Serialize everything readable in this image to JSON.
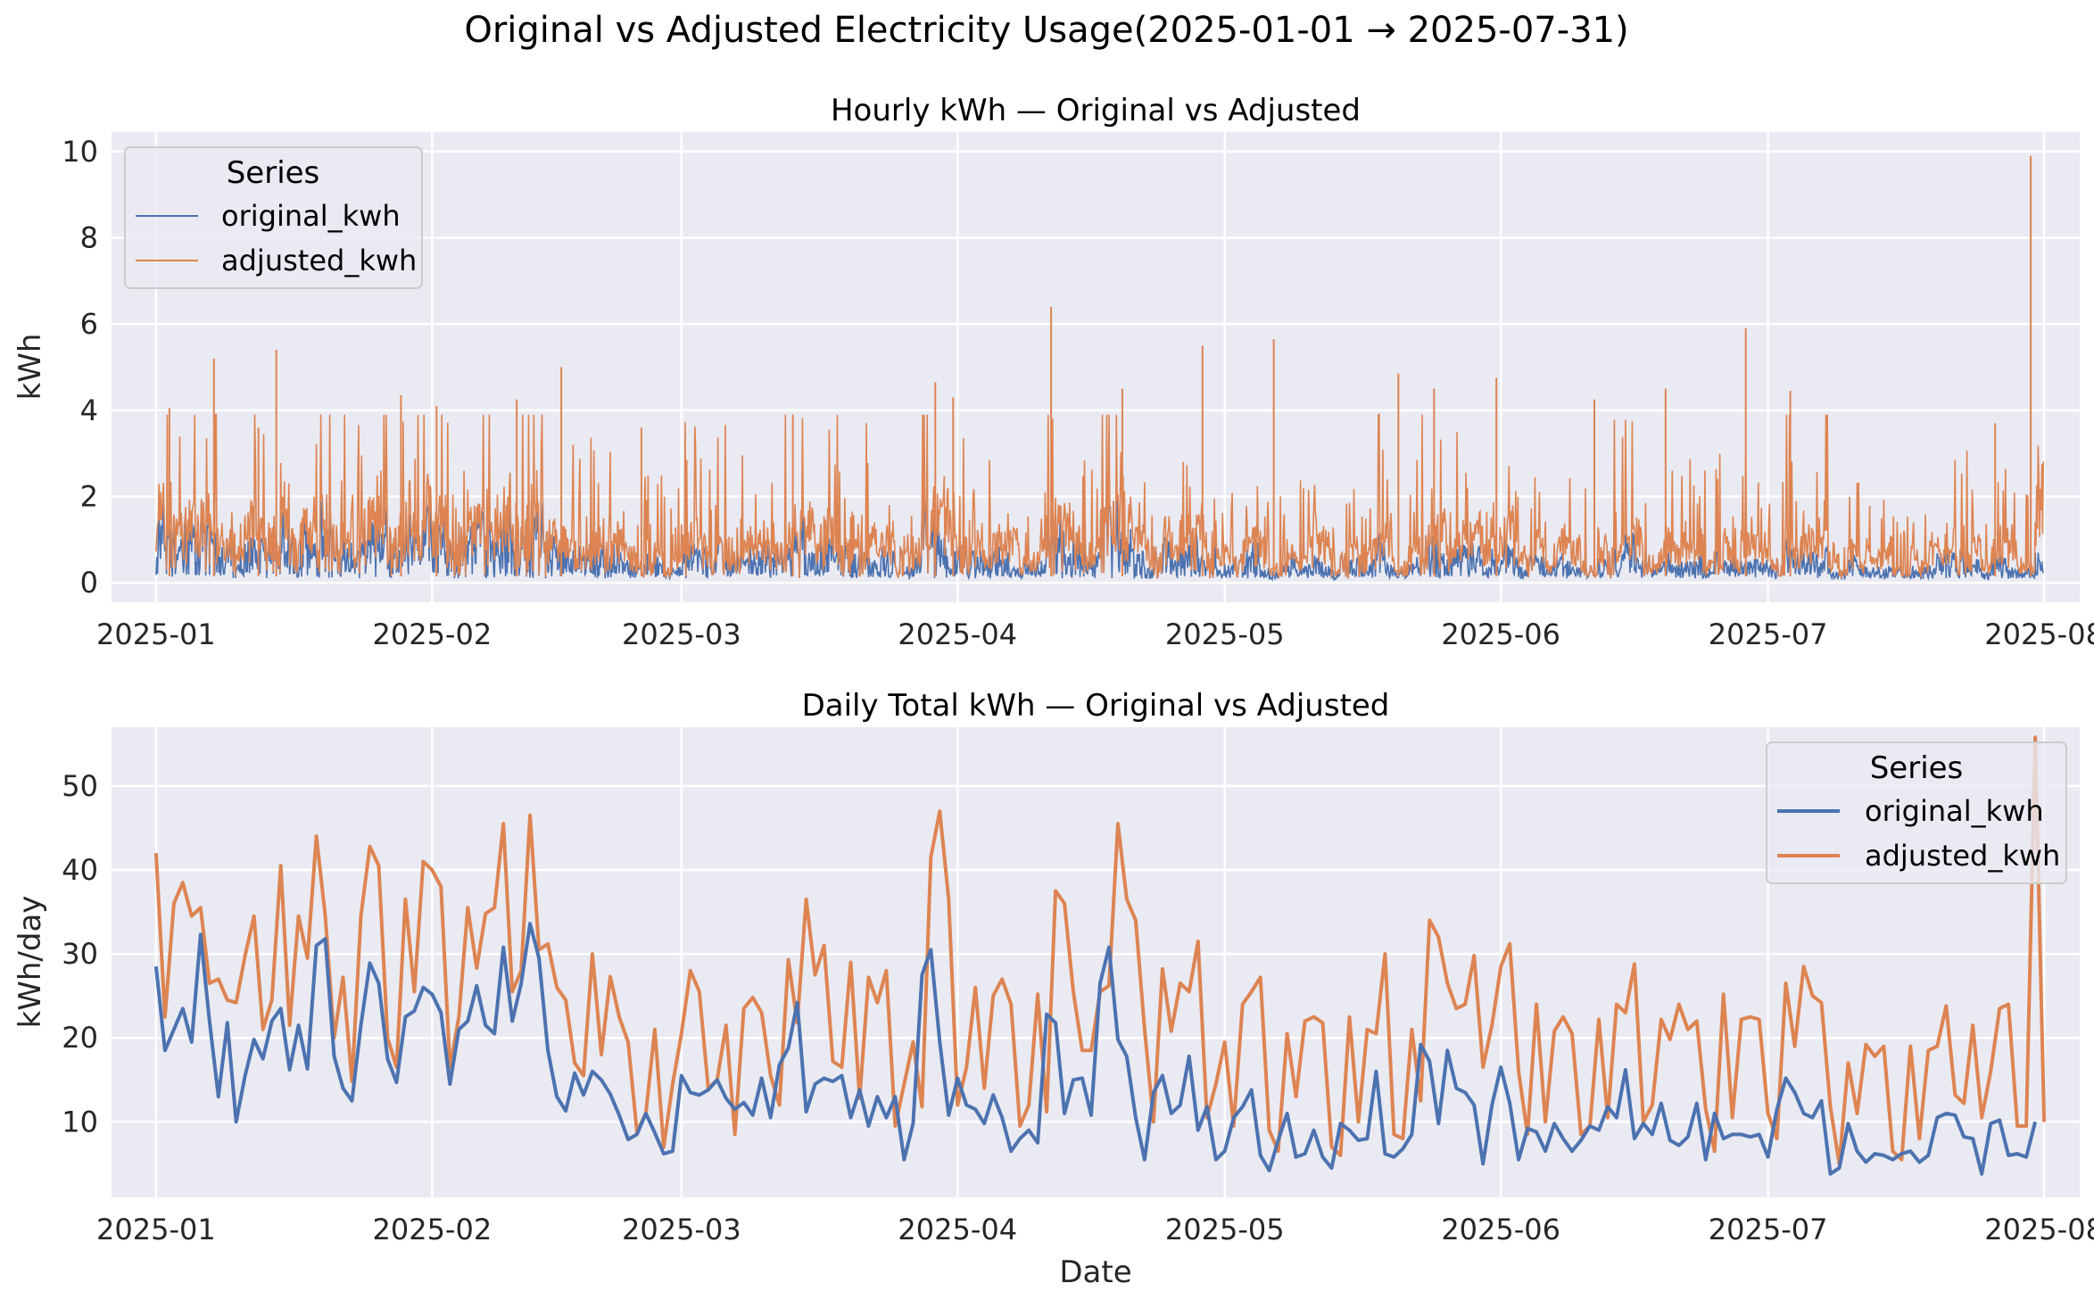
{
  "figure": {
    "title": "Original vs Adjusted Electricity Usage(2025-01-01 → 2025-07-31)"
  },
  "colors": {
    "original": "#4c72b0",
    "adjusted": "#dd8452",
    "panel_bg": "#eaeaf2",
    "grid": "#ffffff"
  },
  "chart_data": [
    {
      "type": "line",
      "title": "Hourly kWh — Original vs Adjusted",
      "xlabel": "",
      "ylabel": "kWh",
      "x_range": [
        "2024-12-27",
        "2025-08-05"
      ],
      "ylim": [
        -0.45,
        10.45
      ],
      "yticks": [
        0,
        2,
        4,
        6,
        8,
        10
      ],
      "xticks": [
        "2025-01-01",
        "2025-02-01",
        "2025-03-01",
        "2025-04-01",
        "2025-05-01",
        "2025-06-01",
        "2025-07-01",
        "2025-08-01"
      ],
      "xtick_labels": [
        "2025-01",
        "2025-02",
        "2025-03",
        "2025-04",
        "2025-05",
        "2025-06",
        "2025-07",
        "2025-08"
      ],
      "grid": true,
      "legend": {
        "title": "Series",
        "placement": "upper-left"
      },
      "series": [
        {
          "name": "original_kwh",
          "approx_range": [
            0.1,
            1.9
          ]
        },
        {
          "name": "adjusted_kwh",
          "approx_range": [
            0.0,
            9.9
          ]
        }
      ],
      "notable_peaks": [
        {
          "x": "2025-01-02",
          "adjusted_kwh": 4.05
        },
        {
          "x": "2025-01-07",
          "adjusted_kwh": 5.2
        },
        {
          "x": "2025-01-12",
          "adjusted_kwh": 3.6
        },
        {
          "x": "2025-01-14",
          "adjusted_kwh": 5.4
        },
        {
          "x": "2025-01-28",
          "adjusted_kwh": 4.35
        },
        {
          "x": "2025-02-01",
          "adjusted_kwh": 4.1
        },
        {
          "x": "2025-02-10",
          "adjusted_kwh": 4.25
        },
        {
          "x": "2025-02-15",
          "adjusted_kwh": 5.0
        },
        {
          "x": "2025-02-24",
          "adjusted_kwh": 3.6
        },
        {
          "x": "2025-03-13",
          "adjusted_kwh": 3.9
        },
        {
          "x": "2025-03-29",
          "adjusted_kwh": 4.65
        },
        {
          "x": "2025-03-31",
          "adjusted_kwh": 4.3
        },
        {
          "x": "2025-04-11",
          "adjusted_kwh": 6.4
        },
        {
          "x": "2025-04-19",
          "adjusted_kwh": 4.5
        },
        {
          "x": "2025-04-28",
          "adjusted_kwh": 5.5
        },
        {
          "x": "2025-05-06",
          "adjusted_kwh": 5.65
        },
        {
          "x": "2025-05-20",
          "adjusted_kwh": 4.85
        },
        {
          "x": "2025-05-24",
          "adjusted_kwh": 4.5
        },
        {
          "x": "2025-05-31",
          "adjusted_kwh": 4.75
        },
        {
          "x": "2025-06-11",
          "adjusted_kwh": 4.25
        },
        {
          "x": "2025-06-19",
          "adjusted_kwh": 4.5
        },
        {
          "x": "2025-06-28",
          "adjusted_kwh": 5.9
        },
        {
          "x": "2025-07-03",
          "adjusted_kwh": 4.45
        },
        {
          "x": "2025-07-26",
          "adjusted_kwh": 3.7
        },
        {
          "x": "2025-07-30",
          "adjusted_kwh": 9.9
        }
      ]
    },
    {
      "type": "line",
      "title": "Daily Total kWh — Original vs Adjusted",
      "xlabel": "Date",
      "ylabel": "kWh/day",
      "x_range": [
        "2024-12-27",
        "2025-08-05"
      ],
      "ylim": [
        1.0,
        57.0
      ],
      "yticks": [
        10,
        20,
        30,
        40,
        50
      ],
      "xticks": [
        "2025-01-01",
        "2025-02-01",
        "2025-03-01",
        "2025-04-01",
        "2025-05-01",
        "2025-06-01",
        "2025-07-01",
        "2025-08-01"
      ],
      "xtick_labels": [
        "2025-01",
        "2025-02",
        "2025-03",
        "2025-04",
        "2025-05",
        "2025-06",
        "2025-07",
        "2025-08"
      ],
      "grid": true,
      "legend": {
        "title": "Series",
        "placement": "upper-right"
      },
      "start_date": "2025-01-01",
      "series": [
        {
          "name": "original_kwh",
          "values": [
            28.5,
            18.5,
            21,
            23.5,
            19.5,
            32.3,
            22,
            13,
            21.8,
            10,
            15.5,
            19.8,
            17.5,
            22,
            23.5,
            16.2,
            21.5,
            16.3,
            31,
            31.8,
            17.8,
            14,
            12.5,
            21.5,
            28.9,
            26.5,
            17.5,
            14.7,
            22.5,
            23.2,
            26,
            25.2,
            23,
            14.5,
            21,
            22,
            26.2,
            21.5,
            20.5,
            30.8,
            22,
            26.5,
            33.6,
            29.5,
            18.5,
            13,
            11.3,
            15.8,
            13.2,
            16,
            15,
            13.3,
            10.8,
            7.9,
            8.5,
            11,
            8.7,
            6.2,
            6.5,
            15.5,
            13.5,
            13.2,
            13.8,
            15,
            12.8,
            11.5,
            12.3,
            10.8,
            15.2,
            10.5,
            16.8,
            18.8,
            24.2,
            11.2,
            14.5,
            15.2,
            14.8,
            15.5,
            10.5,
            13.8,
            9.5,
            13,
            10.5,
            13,
            5.5,
            9.8,
            27.5,
            30.5,
            19.5,
            10.8,
            15.2,
            12,
            11.5,
            9.8,
            13.2,
            10.5,
            6.5,
            8,
            9,
            7.5,
            22.8,
            21.8,
            11,
            15,
            15.2,
            10.8,
            26.5,
            30.8,
            19.8,
            17.8,
            10.5,
            5.5,
            13.5,
            15.5,
            11,
            12,
            17.8,
            9,
            11.8,
            5.5,
            6.5,
            10.5,
            11.8,
            13.8,
            6,
            4.2,
            7.8,
            11,
            5.8,
            6.2,
            9,
            5.8,
            4.5,
            9.8,
            9,
            7.8,
            8,
            16,
            6.2,
            5.8,
            6.8,
            8.5,
            19.2,
            17.2,
            9.8,
            18.5,
            14,
            13.5,
            12,
            5,
            12,
            16.5,
            12.2,
            5.5,
            9.2,
            8.8,
            6.5,
            9.8,
            8,
            6.5,
            7.8,
            9.5,
            9,
            11.8,
            10.5,
            16.2,
            8,
            9.8,
            8.5,
            12.2,
            7.8,
            7.2,
            8.2,
            12.2,
            5.5,
            11,
            8,
            8.5,
            8.5,
            8.2,
            8.5,
            5.8,
            11.5,
            15.2,
            13.5,
            11,
            10.5,
            12.5,
            3.8,
            4.5,
            9.8,
            6.5,
            5.2,
            6.2,
            6,
            5.5,
            6.2,
            6.5,
            5.2,
            6,
            10.5,
            11,
            10.8,
            8.2,
            8,
            3.8,
            9.8,
            10.2,
            6,
            6.2,
            5.8,
            10
          ]
        },
        {
          "name": "adjusted_kwh",
          "values": [
            42,
            22.5,
            36,
            38.5,
            34.5,
            35.5,
            26.5,
            27,
            24.5,
            24.2,
            29.8,
            34.5,
            21,
            24.5,
            40.5,
            21.5,
            34.5,
            29.5,
            44,
            34.5,
            20,
            27.2,
            14.8,
            34.5,
            42.8,
            40.5,
            20,
            16.5,
            36.5,
            25.5,
            41,
            40,
            38,
            16.5,
            22.5,
            35.5,
            28.3,
            34.8,
            35.5,
            45.5,
            25.5,
            28,
            46.5,
            30.5,
            31.2,
            26,
            24.5,
            17,
            15.5,
            30,
            18,
            27.3,
            22.5,
            19.5,
            8.8,
            11,
            21,
            7,
            14.5,
            20.5,
            28,
            25.5,
            14,
            15,
            21.5,
            8.5,
            23.5,
            24.8,
            23,
            15.5,
            12,
            29.3,
            21.8,
            36.5,
            27.5,
            31,
            17.2,
            16.5,
            29,
            12.8,
            27.2,
            24.2,
            28,
            9.5,
            14.5,
            19.5,
            11.8,
            41.5,
            47,
            36.5,
            12,
            16.5,
            26,
            14,
            25,
            27,
            24,
            9.5,
            12,
            25.2,
            11.2,
            37.5,
            36,
            25.5,
            18.5,
            18.5,
            25.5,
            26.2,
            45.5,
            36.5,
            34,
            21,
            10,
            28.2,
            20.8,
            26.5,
            25.5,
            31.5,
            10.5,
            14.5,
            19.5,
            9.5,
            24,
            25.5,
            27.2,
            9,
            6.5,
            20.5,
            13,
            22,
            22.5,
            21.8,
            7,
            6,
            22.5,
            10,
            21,
            20.5,
            30,
            8.5,
            8,
            21,
            12.5,
            34,
            32,
            26.5,
            23.5,
            24,
            29.8,
            16.5,
            21.5,
            28.5,
            31.2,
            16,
            8.5,
            24,
            10,
            20.8,
            22.5,
            20.5,
            8.5,
            9.5,
            22.2,
            10.5,
            24,
            23,
            28.8,
            10,
            12,
            22.2,
            19.8,
            24,
            21,
            22,
            11.5,
            6.5,
            25.2,
            10.5,
            22.2,
            22.5,
            22.2,
            11,
            8,
            26.5,
            19,
            28.5,
            25,
            24.2,
            11.8,
            5,
            17,
            11,
            19.2,
            17.8,
            19,
            6.5,
            5.5,
            19,
            8,
            18.5,
            19,
            23.8,
            13.2,
            12.2,
            21.5,
            10.5,
            16,
            23.5,
            24,
            9.5,
            9.5,
            55.8,
            10
          ]
        }
      ]
    }
  ]
}
